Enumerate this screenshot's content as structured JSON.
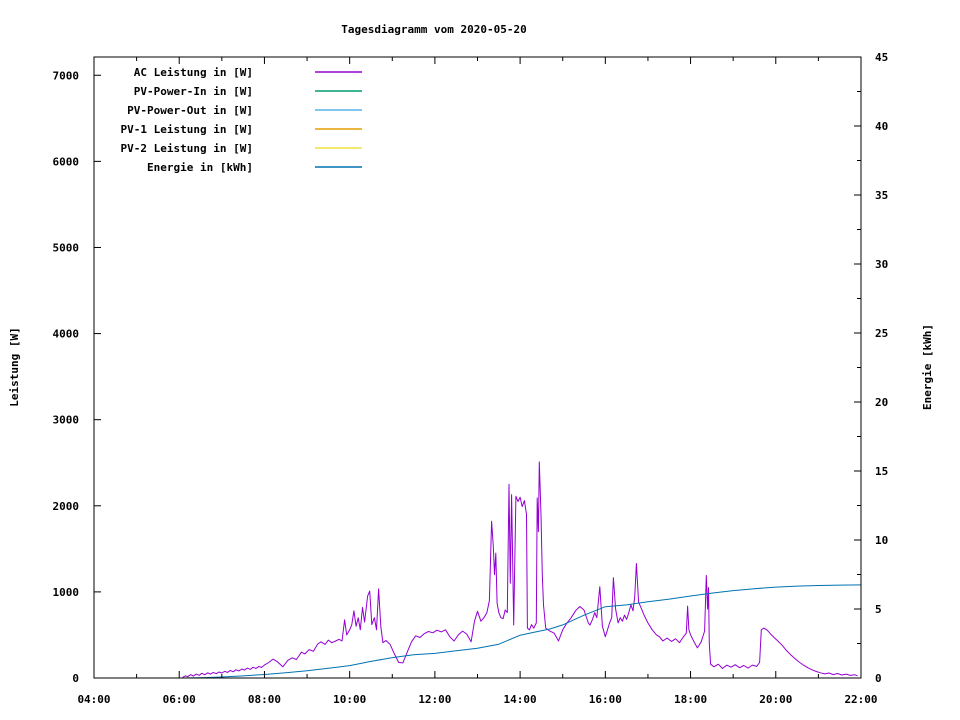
{
  "window": {
    "title": "Tagesdiagramm vom 2020-05-20"
  },
  "chart_data": {
    "type": "line",
    "title": "Tagesdiagramm vom 2020-05-20",
    "xlabel": "",
    "ylabel": "Leistung [W]",
    "y2label": "Energie [kWh]",
    "x_tick_labels": [
      "04:00",
      "06:00",
      "08:00",
      "10:00",
      "12:00",
      "14:00",
      "16:00",
      "18:00",
      "20:00",
      "22:00"
    ],
    "x_ticks_hours": [
      4,
      6,
      8,
      10,
      12,
      14,
      16,
      18,
      20,
      22
    ],
    "x_minor_hours": [
      5,
      7,
      9,
      11,
      13,
      15,
      17,
      19,
      21
    ],
    "xlim_hours": [
      4,
      22
    ],
    "y_ticks": [
      0,
      1000,
      2000,
      3000,
      4000,
      5000,
      6000,
      7000
    ],
    "ylim": [
      0,
      7212
    ],
    "y2_ticks": [
      0,
      5,
      10,
      15,
      20,
      25,
      30,
      35,
      40,
      45
    ],
    "y2_minor_step": 2.5,
    "y2lim": [
      0,
      45
    ],
    "grid": false,
    "legend_position": "top-left-inside",
    "axis_color": "#000000",
    "background_color": "#ffffff",
    "series": [
      {
        "name": "AC Leistung in [W]",
        "color": "#9400D3",
        "axis": "y1",
        "points": [
          [
            6.08,
            8
          ],
          [
            6.15,
            25
          ],
          [
            6.2,
            15
          ],
          [
            6.27,
            40
          ],
          [
            6.33,
            22
          ],
          [
            6.4,
            45
          ],
          [
            6.47,
            30
          ],
          [
            6.53,
            55
          ],
          [
            6.6,
            38
          ],
          [
            6.67,
            60
          ],
          [
            6.73,
            45
          ],
          [
            6.8,
            65
          ],
          [
            6.87,
            50
          ],
          [
            6.93,
            70
          ],
          [
            7.0,
            58
          ],
          [
            7.07,
            78
          ],
          [
            7.13,
            65
          ],
          [
            7.2,
            88
          ],
          [
            7.27,
            72
          ],
          [
            7.33,
            95
          ],
          [
            7.4,
            82
          ],
          [
            7.47,
            105
          ],
          [
            7.53,
            92
          ],
          [
            7.6,
            115
          ],
          [
            7.67,
            100
          ],
          [
            7.73,
            125
          ],
          [
            7.8,
            112
          ],
          [
            7.87,
            135
          ],
          [
            7.93,
            122
          ],
          [
            8.0,
            150
          ],
          [
            8.1,
            180
          ],
          [
            8.2,
            220
          ],
          [
            8.3,
            190
          ],
          [
            8.43,
            130
          ],
          [
            8.55,
            205
          ],
          [
            8.65,
            235
          ],
          [
            8.75,
            215
          ],
          [
            8.87,
            300
          ],
          [
            8.95,
            280
          ],
          [
            9.05,
            330
          ],
          [
            9.15,
            310
          ],
          [
            9.25,
            395
          ],
          [
            9.33,
            420
          ],
          [
            9.42,
            390
          ],
          [
            9.5,
            440
          ],
          [
            9.58,
            410
          ],
          [
            9.67,
            430
          ],
          [
            9.75,
            450
          ],
          [
            9.82,
            430
          ],
          [
            9.88,
            675
          ],
          [
            9.93,
            500
          ],
          [
            10.0,
            560
          ],
          [
            10.05,
            620
          ],
          [
            10.1,
            780
          ],
          [
            10.15,
            600
          ],
          [
            10.2,
            700
          ],
          [
            10.25,
            560
          ],
          [
            10.3,
            820
          ],
          [
            10.35,
            650
          ],
          [
            10.42,
            950
          ],
          [
            10.47,
            1010
          ],
          [
            10.52,
            620
          ],
          [
            10.58,
            700
          ],
          [
            10.63,
            560
          ],
          [
            10.68,
            1035
          ],
          [
            10.73,
            600
          ],
          [
            10.78,
            410
          ],
          [
            10.85,
            435
          ],
          [
            10.95,
            390
          ],
          [
            11.05,
            280
          ],
          [
            11.15,
            180
          ],
          [
            11.25,
            175
          ],
          [
            11.35,
            300
          ],
          [
            11.45,
            420
          ],
          [
            11.55,
            490
          ],
          [
            11.65,
            470
          ],
          [
            11.75,
            515
          ],
          [
            11.85,
            540
          ],
          [
            11.95,
            525
          ],
          [
            12.05,
            555
          ],
          [
            12.15,
            535
          ],
          [
            12.25,
            560
          ],
          [
            12.35,
            480
          ],
          [
            12.45,
            430
          ],
          [
            12.55,
            500
          ],
          [
            12.65,
            545
          ],
          [
            12.75,
            510
          ],
          [
            12.85,
            420
          ],
          [
            12.93,
            660
          ],
          [
            13.0,
            775
          ],
          [
            13.08,
            660
          ],
          [
            13.15,
            700
          ],
          [
            13.22,
            760
          ],
          [
            13.28,
            900
          ],
          [
            13.33,
            1820
          ],
          [
            13.37,
            1530
          ],
          [
            13.4,
            1200
          ],
          [
            13.43,
            1450
          ],
          [
            13.46,
            870
          ],
          [
            13.5,
            760
          ],
          [
            13.55,
            700
          ],
          [
            13.6,
            690
          ],
          [
            13.65,
            790
          ],
          [
            13.7,
            760
          ],
          [
            13.74,
            2250
          ],
          [
            13.77,
            1100
          ],
          [
            13.8,
            2130
          ],
          [
            13.85,
            615
          ],
          [
            13.9,
            2110
          ],
          [
            13.95,
            2050
          ],
          [
            14.0,
            2100
          ],
          [
            14.05,
            1990
          ],
          [
            14.1,
            2060
          ],
          [
            14.15,
            1900
          ],
          [
            14.17,
            580
          ],
          [
            14.22,
            560
          ],
          [
            14.27,
            620
          ],
          [
            14.32,
            580
          ],
          [
            14.38,
            640
          ],
          [
            14.4,
            2090
          ],
          [
            14.43,
            1700
          ],
          [
            14.45,
            2510
          ],
          [
            14.49,
            1890
          ],
          [
            14.52,
            1200
          ],
          [
            14.55,
            850
          ],
          [
            14.6,
            580
          ],
          [
            14.7,
            545
          ],
          [
            14.8,
            520
          ],
          [
            14.9,
            430
          ],
          [
            15.0,
            560
          ],
          [
            15.1,
            640
          ],
          [
            15.2,
            700
          ],
          [
            15.3,
            780
          ],
          [
            15.4,
            830
          ],
          [
            15.5,
            790
          ],
          [
            15.6,
            640
          ],
          [
            15.64,
            615
          ],
          [
            15.7,
            680
          ],
          [
            15.75,
            760
          ],
          [
            15.8,
            700
          ],
          [
            15.87,
            1060
          ],
          [
            15.93,
            600
          ],
          [
            16.0,
            480
          ],
          [
            16.05,
            560
          ],
          [
            16.1,
            640
          ],
          [
            16.15,
            700
          ],
          [
            16.19,
            1165
          ],
          [
            16.24,
            800
          ],
          [
            16.3,
            640
          ],
          [
            16.35,
            700
          ],
          [
            16.4,
            660
          ],
          [
            16.45,
            730
          ],
          [
            16.5,
            680
          ],
          [
            16.55,
            760
          ],
          [
            16.6,
            850
          ],
          [
            16.65,
            780
          ],
          [
            16.69,
            940
          ],
          [
            16.73,
            1330
          ],
          [
            16.78,
            880
          ],
          [
            16.85,
            800
          ],
          [
            16.9,
            740
          ],
          [
            17.0,
            640
          ],
          [
            17.1,
            560
          ],
          [
            17.2,
            500
          ],
          [
            17.27,
            480
          ],
          [
            17.35,
            430
          ],
          [
            17.45,
            465
          ],
          [
            17.55,
            425
          ],
          [
            17.65,
            455
          ],
          [
            17.74,
            410
          ],
          [
            17.82,
            470
          ],
          [
            17.9,
            520
          ],
          [
            17.93,
            835
          ],
          [
            17.96,
            560
          ],
          [
            18.0,
            500
          ],
          [
            18.08,
            420
          ],
          [
            18.16,
            350
          ],
          [
            18.25,
            420
          ],
          [
            18.33,
            545
          ],
          [
            18.37,
            1190
          ],
          [
            18.4,
            800
          ],
          [
            18.42,
            1050
          ],
          [
            18.44,
            400
          ],
          [
            18.47,
            160
          ],
          [
            18.55,
            130
          ],
          [
            18.65,
            160
          ],
          [
            18.75,
            110
          ],
          [
            18.85,
            150
          ],
          [
            18.95,
            125
          ],
          [
            19.05,
            155
          ],
          [
            19.15,
            120
          ],
          [
            19.25,
            145
          ],
          [
            19.35,
            115
          ],
          [
            19.45,
            150
          ],
          [
            19.55,
            135
          ],
          [
            19.62,
            180
          ],
          [
            19.66,
            560
          ],
          [
            19.72,
            580
          ],
          [
            19.8,
            555
          ],
          [
            19.88,
            510
          ],
          [
            19.96,
            470
          ],
          [
            20.05,
            430
          ],
          [
            20.15,
            380
          ],
          [
            20.25,
            320
          ],
          [
            20.35,
            270
          ],
          [
            20.45,
            225
          ],
          [
            20.55,
            185
          ],
          [
            20.65,
            150
          ],
          [
            20.75,
            120
          ],
          [
            20.85,
            95
          ],
          [
            20.95,
            75
          ],
          [
            21.05,
            60
          ],
          [
            21.15,
            48
          ],
          [
            21.25,
            58
          ],
          [
            21.35,
            40
          ],
          [
            21.45,
            52
          ],
          [
            21.55,
            35
          ],
          [
            21.65,
            45
          ],
          [
            21.75,
            30
          ],
          [
            21.85,
            38
          ],
          [
            21.92,
            25
          ]
        ]
      },
      {
        "name": "PV-Power-In in [W]",
        "color": "#009E73",
        "axis": "y1",
        "points": []
      },
      {
        "name": "PV-Power-Out in [W]",
        "color": "#56B4E9",
        "axis": "y1",
        "points": []
      },
      {
        "name": "PV-1 Leistung in [W]",
        "color": "#E69F00",
        "axis": "y1",
        "points": []
      },
      {
        "name": "PV-2 Leistung in [W]",
        "color": "#F0E442",
        "axis": "y1",
        "points": []
      },
      {
        "name": "Energie in [kWh]",
        "color": "#0072B2",
        "axis": "y2",
        "points": [
          [
            6.1,
            0
          ],
          [
            6.6,
            0.03
          ],
          [
            7.0,
            0.07
          ],
          [
            7.5,
            0.15
          ],
          [
            8.0,
            0.25
          ],
          [
            8.5,
            0.38
          ],
          [
            9.0,
            0.52
          ],
          [
            9.5,
            0.7
          ],
          [
            10.0,
            0.9
          ],
          [
            10.5,
            1.2
          ],
          [
            11.0,
            1.48
          ],
          [
            11.5,
            1.68
          ],
          [
            12.0,
            1.78
          ],
          [
            12.5,
            1.98
          ],
          [
            13.0,
            2.15
          ],
          [
            13.5,
            2.45
          ],
          [
            14.0,
            3.1
          ],
          [
            14.3,
            3.3
          ],
          [
            14.7,
            3.55
          ],
          [
            15.0,
            3.85
          ],
          [
            15.5,
            4.55
          ],
          [
            16.0,
            5.17
          ],
          [
            16.5,
            5.3
          ],
          [
            17.0,
            5.53
          ],
          [
            17.5,
            5.72
          ],
          [
            18.0,
            5.94
          ],
          [
            18.5,
            6.15
          ],
          [
            19.0,
            6.33
          ],
          [
            19.5,
            6.47
          ],
          [
            20.0,
            6.59
          ],
          [
            20.5,
            6.66
          ],
          [
            21.0,
            6.7
          ],
          [
            21.5,
            6.73
          ],
          [
            22.0,
            6.75
          ]
        ]
      }
    ]
  }
}
